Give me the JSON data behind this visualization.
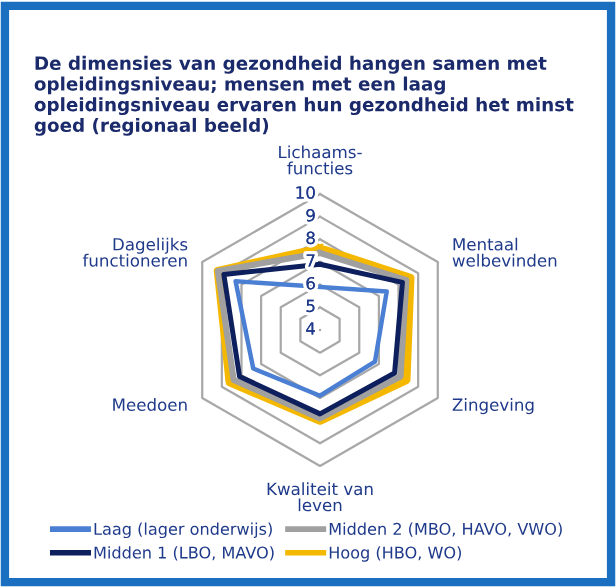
{
  "chart_data": {
    "type": "radar",
    "title": "De dimensies van gezondheid hangen samen met opleidingsniveau; mensen met een laag opleidingsniveau ervaren hun gezondheid het minst goed (regionaal beeld)",
    "categories": [
      "Lichaams-\nfuncties",
      "Mentaal\nwelbevinden",
      "Zingeving",
      "Kwaliteit van\nleven",
      "Meedoen",
      "Dagelijks\nfunctioneren"
    ],
    "ylim": [
      4,
      10
    ],
    "yticks": [
      4,
      5,
      6,
      7,
      8,
      9,
      10
    ],
    "grid": true,
    "legend": "bottom",
    "series": [
      {
        "name": "Laag (lager onderwijs)",
        "color": "#4a7fd4",
        "values": [
          5.9,
          7.4,
          6.8,
          6.9,
          7.4,
          8.3
        ]
      },
      {
        "name": "Midden 1 (LBO, MAVO)",
        "color": "#0d1f5c",
        "values": [
          6.9,
          8.2,
          7.8,
          7.7,
          8.1,
          8.9
        ]
      },
      {
        "name": "Midden 2 (MBO, HAVO, VWO)",
        "color": "#a0a0a0",
        "values": [
          7.4,
          8.4,
          8.1,
          7.9,
          8.4,
          9.2
        ]
      },
      {
        "name": "Hoog (HBO, WO)",
        "color": "#f5b800",
        "values": [
          7.6,
          8.6,
          8.4,
          8.0,
          8.6,
          9.2
        ]
      }
    ]
  }
}
